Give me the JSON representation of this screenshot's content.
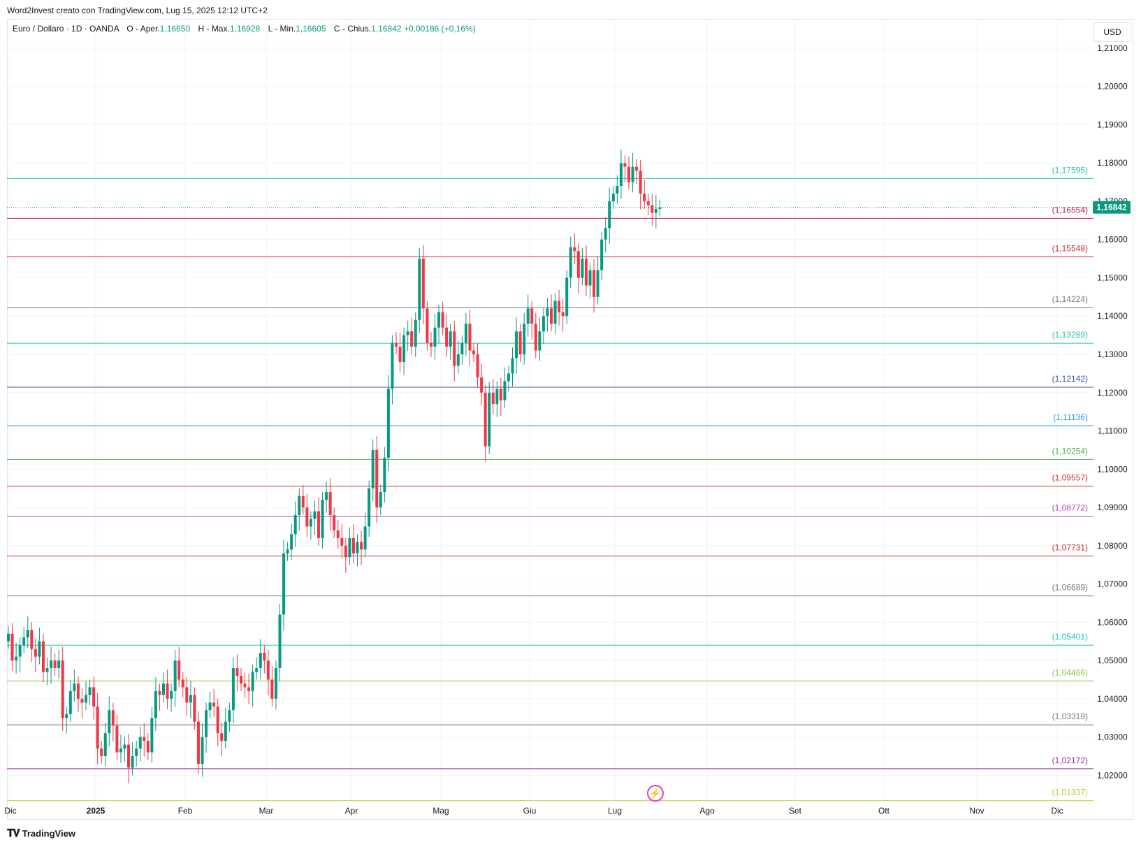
{
  "header": {
    "attribution": "Word2Invest creato con TradingView.com, Lug 15, 2025 12:12 UTC+2"
  },
  "legend": {
    "symbol": "Euro / Dollaro · 1D · OANDA",
    "open_label": "O - Aper.",
    "open": "1,16650",
    "high_label": "H - Max.",
    "high": "1,16928",
    "low_label": "L - Min.",
    "low": "1,16605",
    "close_label": "C - Chius.",
    "close": "1,16842",
    "change": "+0,00186 (+0,16%)"
  },
  "currency_button": "USD",
  "footer": {
    "brand": "TradingView"
  },
  "chart_data": {
    "type": "candlestick",
    "ylim": [
      1.0133,
      1.212
    ],
    "y_ticks": [
      1.02,
      1.03,
      1.04,
      1.05,
      1.06,
      1.07,
      1.08,
      1.09,
      1.1,
      1.11,
      1.12,
      1.13,
      1.14,
      1.15,
      1.16,
      1.17,
      1.18,
      1.19,
      1.2,
      1.21
    ],
    "y_tick_labels": [
      "1,02000",
      "1,03000",
      "1,04000",
      "1,05000",
      "1,06000",
      "1,07000",
      "1,08000",
      "1,09000",
      "1,10000",
      "1,11000",
      "1,12000",
      "1,13000",
      "1,14000",
      "1,15000",
      "1,16000",
      "1,17000",
      "1,18000",
      "1,19000",
      "1,20000",
      "1,21000"
    ],
    "x_labels": [
      "Dic",
      "2025",
      "Feb",
      "Mar",
      "Apr",
      "Mag",
      "Giu",
      "Lug",
      "Ago",
      "Set",
      "Ott",
      "Nov",
      "Dic"
    ],
    "last_price": {
      "value": 1.16842,
      "label": "1,16842",
      "color": "#089981"
    },
    "up_color": "#089981",
    "down_color": "#f23645",
    "levels": [
      {
        "value": 1.17595,
        "label": "(1,17595)",
        "color": "#26c6a8"
      },
      {
        "value": 1.16554,
        "label": "(1,16554)",
        "color": "#c2185b"
      },
      {
        "value": 1.15548,
        "label": "(1,15548)",
        "color": "#d32f2f"
      },
      {
        "value": 1.14224,
        "label": "(1,14224)",
        "color": "#787b86"
      },
      {
        "value": 1.13289,
        "label": "(1,13289)",
        "color": "#26c6a8"
      },
      {
        "value": 1.12142,
        "label": "(1,12142)",
        "color": "#3f51b5"
      },
      {
        "value": 1.11136,
        "label": "(1,11136)",
        "color": "#2196f3"
      },
      {
        "value": 1.10254,
        "label": "(1,10254)",
        "color": "#4caf50"
      },
      {
        "value": 1.09557,
        "label": "(1,09557)",
        "color": "#d32f2f"
      },
      {
        "value": 1.08772,
        "label": "(1,08772)",
        "color": "#ab47bc"
      },
      {
        "value": 1.07731,
        "label": "(1,07731)",
        "color": "#d32f2f"
      },
      {
        "value": 1.06689,
        "label": "(1,06689)",
        "color": "#787b86"
      },
      {
        "value": 1.05401,
        "label": "(1,05401)",
        "color": "#26c6a8"
      },
      {
        "value": 1.04466,
        "label": "(1,04466)",
        "color": "#8bc34a"
      },
      {
        "value": 1.03319,
        "label": "(1,03319)",
        "color": "#787b86"
      },
      {
        "value": 1.02172,
        "label": "(1,02172)",
        "color": "#9c27b0"
      },
      {
        "value": 1.01337,
        "label": "(1,01337)",
        "color": "#c0ca33"
      }
    ],
    "closes": [
      1.057,
      1.05,
      1.051,
      1.054,
      1.056,
      1.058,
      1.053,
      1.051,
      1.055,
      1.047,
      1.048,
      1.05,
      1.048,
      1.05,
      1.035,
      1.036,
      1.042,
      1.044,
      1.04,
      1.039,
      1.041,
      1.043,
      1.038,
      1.027,
      1.025,
      1.031,
      1.037,
      1.033,
      1.026,
      1.027,
      1.028,
      1.022,
      1.025,
      1.027,
      1.03,
      1.029,
      1.026,
      1.035,
      1.042,
      1.041,
      1.044,
      1.04,
      1.042,
      1.05,
      1.045,
      1.043,
      1.039,
      1.041,
      1.034,
      1.023,
      1.03,
      1.037,
      1.039,
      1.038,
      1.031,
      1.029,
      1.034,
      1.037,
      1.048,
      1.046,
      1.044,
      1.043,
      1.042,
      1.047,
      1.048,
      1.052,
      1.05,
      1.045,
      1.04,
      1.048,
      1.062,
      1.078,
      1.079,
      1.083,
      1.088,
      1.093,
      1.09,
      1.085,
      1.087,
      1.089,
      1.082,
      1.092,
      1.094,
      1.088,
      1.084,
      1.082,
      1.08,
      1.077,
      1.082,
      1.078,
      1.081,
      1.079,
      1.085,
      1.095,
      1.105,
      1.09,
      1.094,
      1.103,
      1.121,
      1.133,
      1.132,
      1.128,
      1.135,
      1.136,
      1.132,
      1.139,
      1.155,
      1.142,
      1.133,
      1.132,
      1.137,
      1.141,
      1.137,
      1.132,
      1.136,
      1.127,
      1.13,
      1.133,
      1.138,
      1.131,
      1.13,
      1.124,
      1.12,
      1.106,
      1.12,
      1.117,
      1.121,
      1.118,
      1.123,
      1.125,
      1.129,
      1.136,
      1.13,
      1.138,
      1.142,
      1.138,
      1.131,
      1.136,
      1.14,
      1.142,
      1.138,
      1.144,
      1.141,
      1.14,
      1.15,
      1.158,
      1.157,
      1.15,
      1.155,
      1.148,
      1.152,
      1.145,
      1.152,
      1.16,
      1.163,
      1.17,
      1.172,
      1.174,
      1.18,
      1.179,
      1.175,
      1.179,
      1.178,
      1.172,
      1.17,
      1.169,
      1.167,
      1.168,
      1.1684
    ]
  }
}
